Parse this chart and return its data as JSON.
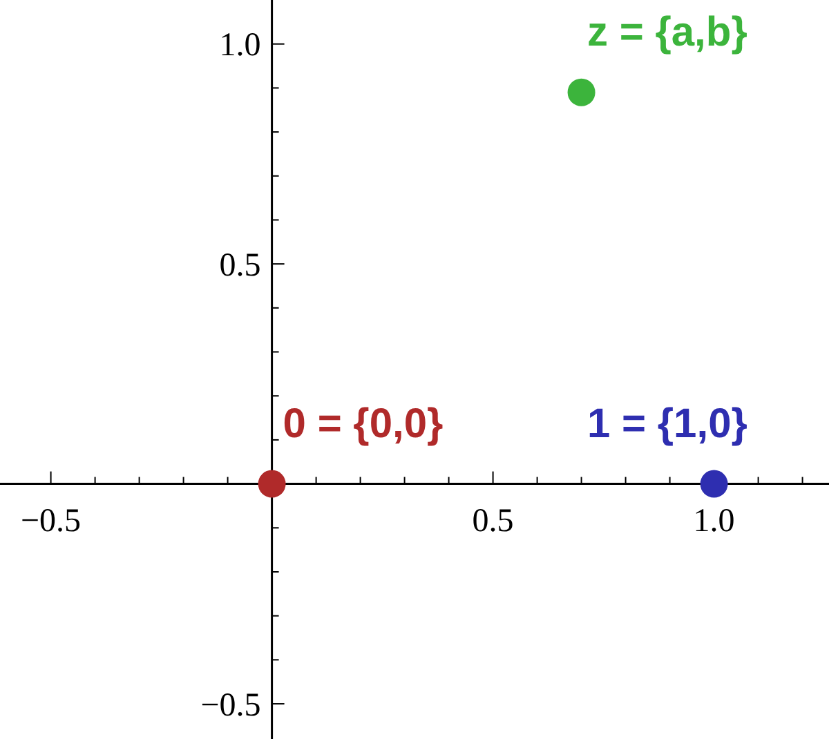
{
  "chart_data": {
    "type": "scatter",
    "marker": "circle",
    "xlim": [
      -0.615,
      1.26
    ],
    "ylim": [
      -0.58,
      1.1
    ],
    "xticks": [
      {
        "value": -0.5,
        "label": "−0.5"
      },
      {
        "value": 0.5,
        "label": "0.5"
      },
      {
        "value": 1.0,
        "label": "1.0"
      },
      {
        "value": -0.4,
        "label": null
      },
      {
        "value": -0.3,
        "label": null
      },
      {
        "value": -0.2,
        "label": null
      },
      {
        "value": -0.1,
        "label": null
      },
      {
        "value": 0.1,
        "label": null
      },
      {
        "value": 0.2,
        "label": null
      },
      {
        "value": 0.3,
        "label": null
      },
      {
        "value": 0.4,
        "label": null
      },
      {
        "value": 0.6,
        "label": null
      },
      {
        "value": 0.7,
        "label": null
      },
      {
        "value": 0.8,
        "label": null
      },
      {
        "value": 0.9,
        "label": null
      },
      {
        "value": 1.1,
        "label": null
      },
      {
        "value": 1.2,
        "label": null
      }
    ],
    "yticks": [
      {
        "value": -0.5,
        "label": "−0.5"
      },
      {
        "value": 0.5,
        "label": "0.5"
      },
      {
        "value": 1.0,
        "label": "1.0"
      },
      {
        "value": -0.4,
        "label": null
      },
      {
        "value": -0.3,
        "label": null
      },
      {
        "value": -0.2,
        "label": null
      },
      {
        "value": -0.1,
        "label": null
      },
      {
        "value": 0.1,
        "label": null
      },
      {
        "value": 0.2,
        "label": null
      },
      {
        "value": 0.3,
        "label": null
      },
      {
        "value": 0.4,
        "label": null
      },
      {
        "value": 0.6,
        "label": null
      },
      {
        "value": 0.7,
        "label": null
      },
      {
        "value": 0.8,
        "label": null
      },
      {
        "value": 0.9,
        "label": null
      }
    ],
    "series": [
      {
        "name": "0 = {0,0}",
        "color": "#b02a2a",
        "x": [
          0
        ],
        "values": [
          0
        ]
      },
      {
        "name": "1 = {1,0}",
        "color": "#2e2eb0",
        "x": [
          1
        ],
        "values": [
          0
        ]
      },
      {
        "name": "z = {a,b}",
        "color": "#3cb43c",
        "x": [
          0.7
        ],
        "values": [
          0.89
        ]
      }
    ]
  }
}
